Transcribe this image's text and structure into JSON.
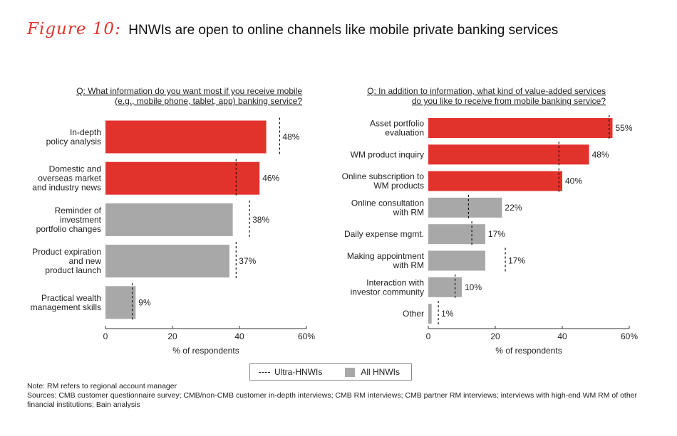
{
  "figure": {
    "label": "Figure 10:",
    "title": "HNWIs are open to online channels like mobile private banking services"
  },
  "colors": {
    "highlight": "#e2322c",
    "neutral": "#a8a8a8",
    "dashed": "#111111"
  },
  "chart_data": [
    {
      "type": "bar",
      "orientation": "horizontal",
      "question": [
        "Q: What information do you want most if you receive mobile",
        "(e.g., mobile phone, tablet, app) banking service?"
      ],
      "categories": [
        [
          "In-depth",
          "policy analysis"
        ],
        [
          "Domestic and",
          "overseas market",
          "and industry news"
        ],
        [
          "Reminder of",
          "investment",
          "portfolio changes"
        ],
        [
          "Product expiration",
          "and new",
          "product launch"
        ],
        [
          "Practical wealth",
          "management skills"
        ]
      ],
      "values": [
        48,
        46,
        38,
        37,
        9
      ],
      "value_labels": [
        "48%",
        "46%",
        "38%",
        "37%",
        "9%"
      ],
      "highlight": [
        true,
        true,
        false,
        false,
        false
      ],
      "ultra_hnwi": [
        52,
        39,
        43,
        39,
        8
      ],
      "series_names": [
        "All HNWIs",
        "Ultra-HNWIs"
      ],
      "xlim": [
        0,
        60
      ],
      "xticks": [
        "0",
        "20",
        "40",
        "60%"
      ],
      "xlabel": "% of respondents"
    },
    {
      "type": "bar",
      "orientation": "horizontal",
      "question": [
        "Q: In addition to information, what kind of value-added services",
        "do you like to receive from mobile banking service?"
      ],
      "categories": [
        [
          "Asset portfolio",
          "evaluation"
        ],
        [
          "WM product inquiry"
        ],
        [
          "Online subscription to",
          "WM products"
        ],
        [
          "Online consultation",
          "with RM"
        ],
        [
          "Daily expense mgmt."
        ],
        [
          "Making appointment",
          "with RM"
        ],
        [
          "Interaction with",
          "investor community"
        ],
        [
          "Other"
        ]
      ],
      "values": [
        55,
        48,
        40,
        22,
        17,
        17,
        10,
        1
      ],
      "value_labels": [
        "55%",
        "48%",
        "40%",
        "22%",
        "17%",
        "17%",
        "10%",
        "1%"
      ],
      "highlight": [
        true,
        true,
        true,
        false,
        false,
        false,
        false,
        false
      ],
      "ultra_hnwi": [
        54,
        39,
        39,
        12,
        13,
        23,
        8,
        3
      ],
      "series_names": [
        "All HNWIs",
        "Ultra-HNWIs"
      ],
      "xlim": [
        0,
        60
      ],
      "xticks": [
        "0",
        "20",
        "40",
        "60%"
      ],
      "xlabel": "% of respondents"
    }
  ],
  "legend": {
    "ultra": "Ultra-HNWIs",
    "all": "All HNWIs"
  },
  "notes": {
    "note": "Note: RM refers to regional account manager",
    "sources": "Sources: CMB customer questionnaire survey; CMB/non-CMB customer in-depth interviews; CMB RM interviews; CMB partner RM interviews; interviews with high-end WM RM of other financial institutions; Bain analysis"
  }
}
